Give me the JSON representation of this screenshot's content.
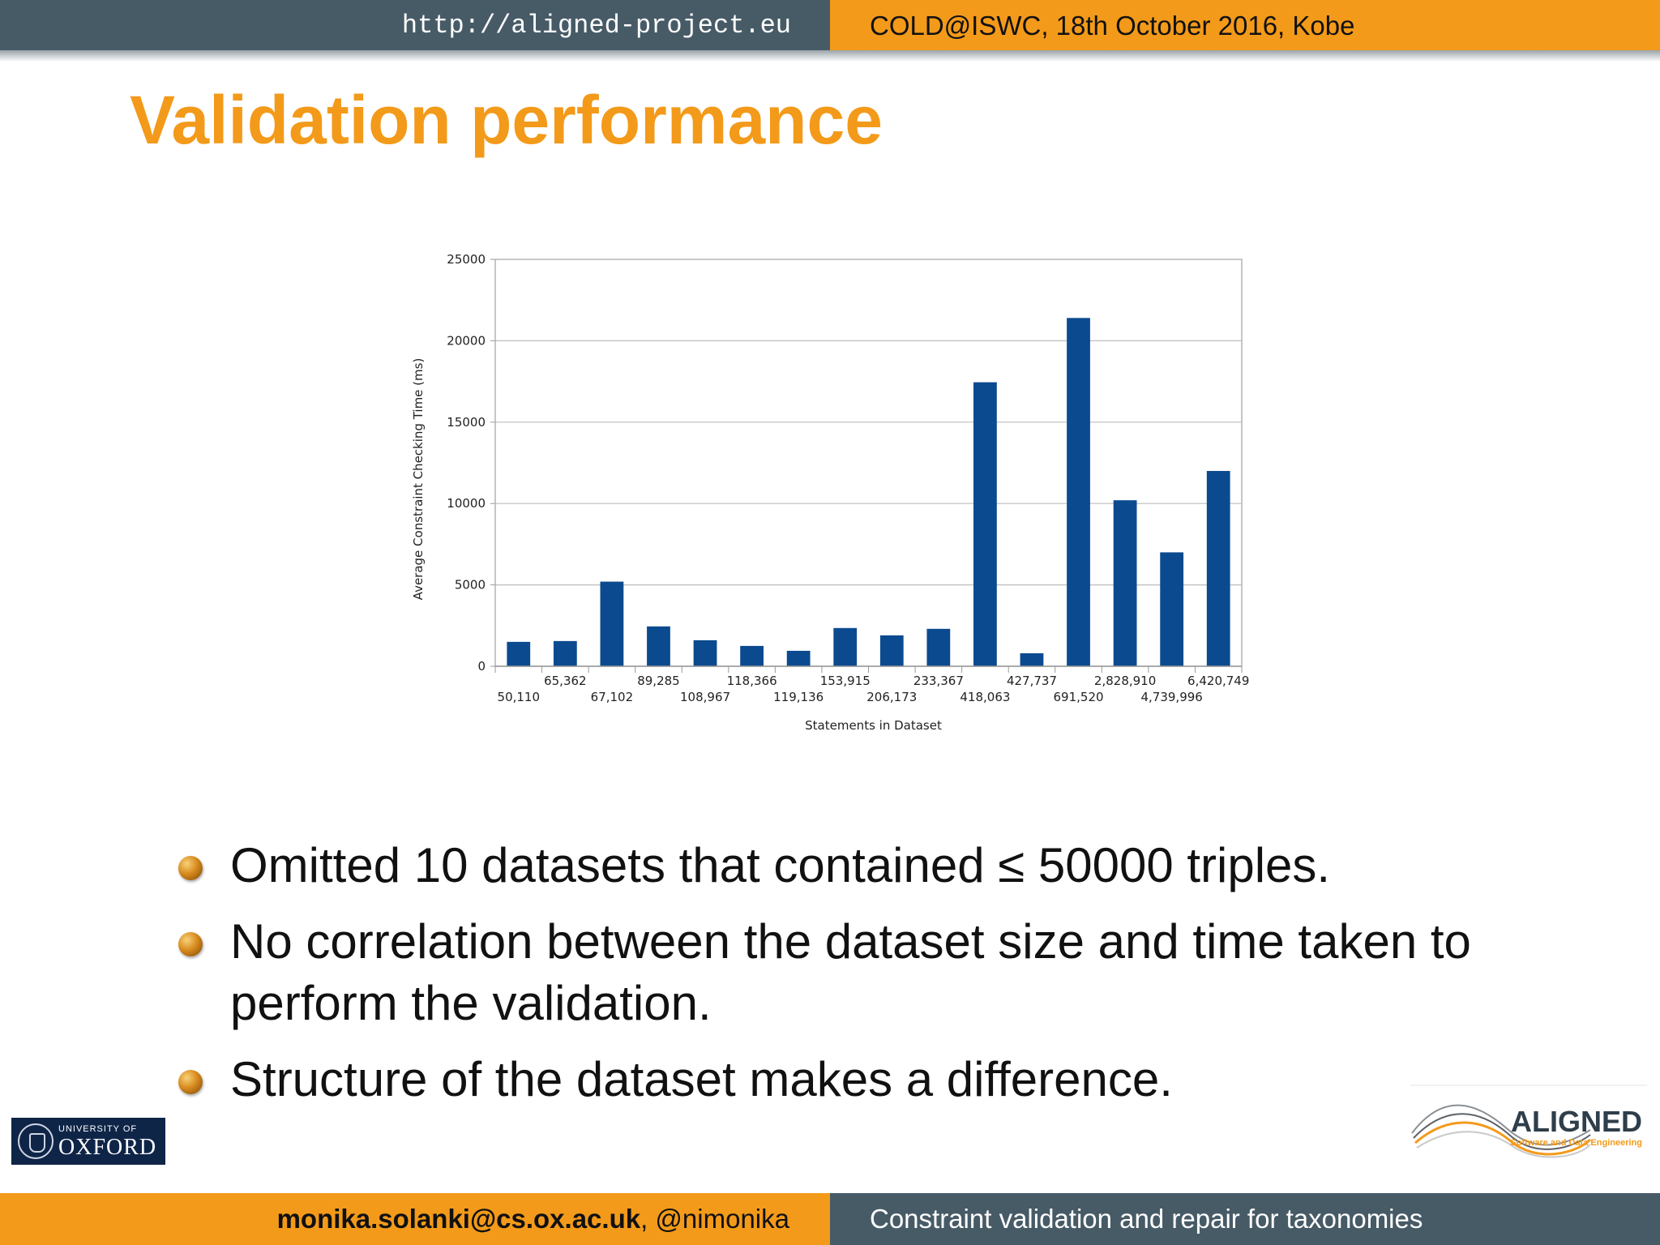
{
  "header": {
    "url": "http://aligned-project.eu",
    "event": "COLD@ISWC, 18th October 2016, Kobe"
  },
  "slide": {
    "title": "Validation performance"
  },
  "chart_data": {
    "type": "bar",
    "title": "",
    "xlabel": "Statements in Dataset",
    "ylabel": "Average Constraint Checking Time (ms)",
    "ylim": [
      0,
      25000
    ],
    "yticks": [
      "0",
      "5000",
      "10000",
      "15000",
      "20000",
      "25000"
    ],
    "categories": [
      "50,110",
      "65,362",
      "67,102",
      "89,285",
      "108,967",
      "118,366",
      "119,136",
      "153,915",
      "206,173",
      "233,367",
      "418,063",
      "427,737",
      "691,520",
      "2,828,910",
      "4,739,996",
      "6,420,749"
    ],
    "values": [
      1500,
      1550,
      5200,
      2450,
      1600,
      1250,
      950,
      2350,
      1900,
      2300,
      17450,
      800,
      21400,
      10200,
      7000,
      12000
    ],
    "grid": true,
    "legend": "none",
    "bar_color": "#0b4a8f"
  },
  "bullets": [
    "Omitted 10 datasets that contained ≤ 50000 triples.",
    "No correlation between the dataset size and time taken to perform the validation.",
    "Structure of the dataset makes a difference."
  ],
  "logos": {
    "oxford_small": "UNIVERSITY OF",
    "oxford_big": "OXFORD",
    "aligned_word": "ALIGNED",
    "aligned_tagline": "Software and Data Engineering"
  },
  "footer": {
    "email": "monika.solanki@cs.ox.ac.uk",
    "handle": ", @nimonika",
    "talk_title": "Constraint validation and repair for taxonomies"
  },
  "colors": {
    "accent": "#f39a1a",
    "bar_dark": "#475b67"
  }
}
